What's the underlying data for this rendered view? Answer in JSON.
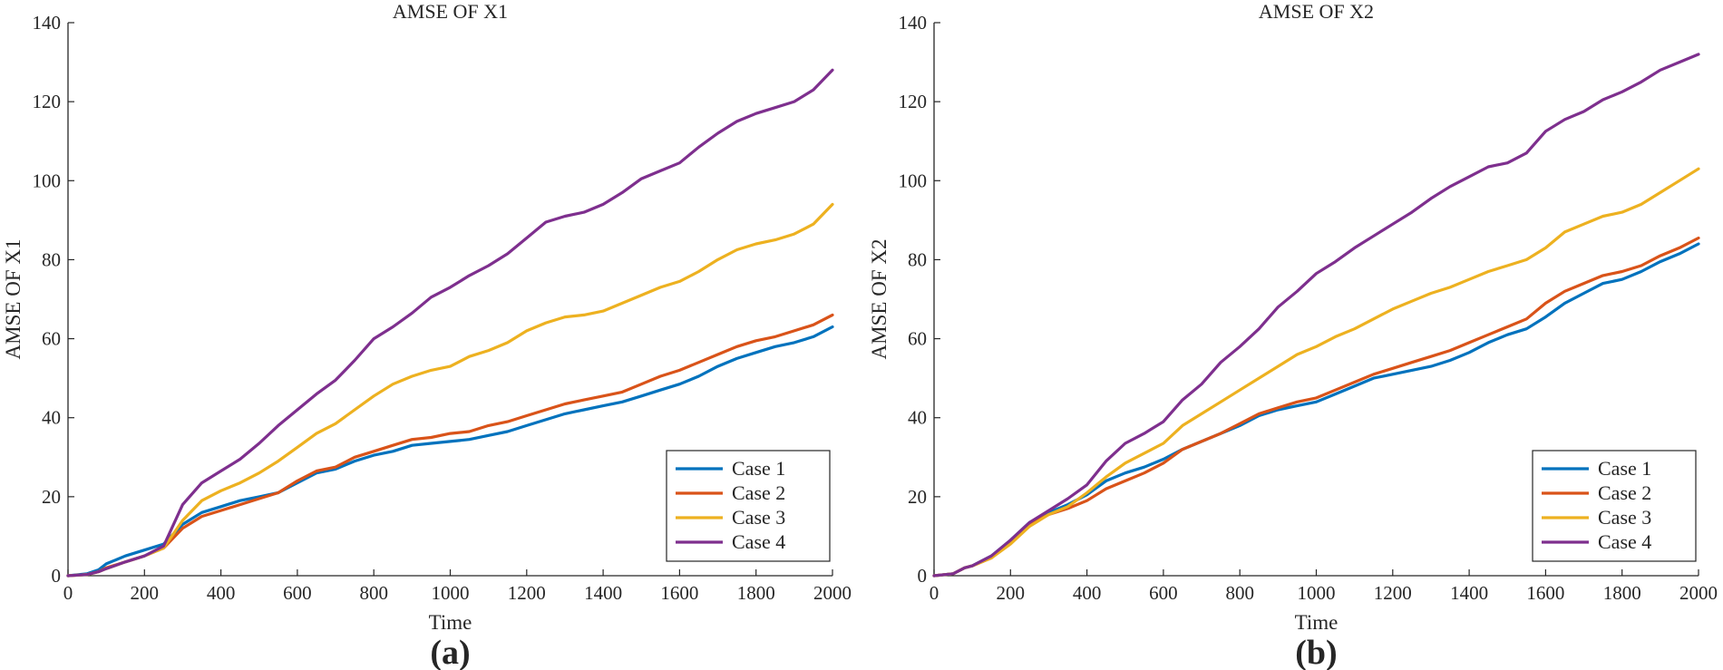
{
  "colors": {
    "case1": "#0072BD",
    "case2": "#D95319",
    "case3": "#EDB120",
    "case4": "#7E2F8E",
    "axis": "#262626"
  },
  "chart_data": [
    {
      "type": "line",
      "panel_label": "(a)",
      "title": "AMSE OF X1",
      "xlabel": "Time",
      "ylabel": "AMSE OF X1",
      "xlim": [
        0,
        2000
      ],
      "ylim": [
        0,
        140
      ],
      "xticks": [
        0,
        200,
        400,
        600,
        800,
        1000,
        1200,
        1400,
        1600,
        1800,
        2000
      ],
      "yticks": [
        0,
        20,
        40,
        60,
        80,
        100,
        120,
        140
      ],
      "grid": false,
      "legend_position": "bottom-right",
      "x": [
        0,
        50,
        80,
        100,
        150,
        200,
        250,
        300,
        350,
        400,
        450,
        500,
        550,
        600,
        650,
        700,
        750,
        800,
        850,
        900,
        950,
        1000,
        1050,
        1100,
        1150,
        1200,
        1250,
        1300,
        1350,
        1400,
        1450,
        1500,
        1550,
        1600,
        1650,
        1700,
        1750,
        1800,
        1850,
        1900,
        1950,
        2000
      ],
      "series": [
        {
          "name": "Case 1",
          "color_key": "case1",
          "values": [
            0,
            0.5,
            1.5,
            3,
            5,
            6.5,
            8,
            13,
            16,
            17.5,
            19,
            20,
            21,
            23.5,
            26,
            27,
            29,
            30.5,
            31.5,
            33,
            33.5,
            34,
            34.5,
            35.5,
            36.5,
            38,
            39.5,
            41,
            42,
            43,
            44,
            45.5,
            47,
            48.5,
            50.5,
            53,
            55,
            56.5,
            58,
            59,
            60.5,
            63
          ]
        },
        {
          "name": "Case 2",
          "color_key": "case2",
          "values": [
            0,
            0.3,
            1,
            2,
            3.5,
            5,
            7,
            12,
            15,
            16.5,
            18,
            19.5,
            21,
            24,
            26.5,
            27.5,
            30,
            31.5,
            33,
            34.5,
            35,
            36,
            36.5,
            38,
            39,
            40.5,
            42,
            43.5,
            44.5,
            45.5,
            46.5,
            48.5,
            50.5,
            52,
            54,
            56,
            58,
            59.5,
            60.5,
            62,
            63.5,
            66
          ]
        },
        {
          "name": "Case 3",
          "color_key": "case3",
          "values": [
            0,
            0.3,
            1,
            1.8,
            3.5,
            5,
            7,
            14,
            19,
            21.5,
            23.5,
            26,
            29,
            32.5,
            36,
            38.5,
            42,
            45.5,
            48.5,
            50.5,
            52,
            53,
            55.5,
            57,
            59,
            62,
            64,
            65.5,
            66,
            67,
            69,
            71,
            73,
            74.5,
            77,
            80,
            82.5,
            84,
            85,
            86.5,
            89,
            94
          ]
        },
        {
          "name": "Case 4",
          "color_key": "case4",
          "values": [
            0,
            0.3,
            1,
            1.8,
            3.5,
            5,
            7.5,
            18,
            23.5,
            26.5,
            29.5,
            33.5,
            38,
            42,
            46,
            49.5,
            54.5,
            60,
            63,
            66.5,
            70.5,
            73,
            76,
            78.5,
            81.5,
            85.5,
            89.5,
            91,
            92,
            94,
            97,
            100.5,
            102.5,
            104.5,
            108.5,
            112,
            115,
            117,
            118.5,
            120,
            123,
            128
          ]
        }
      ]
    },
    {
      "type": "line",
      "panel_label": "(b)",
      "title": "AMSE OF X2",
      "xlabel": "Time",
      "ylabel": "AMSE OF X2",
      "xlim": [
        0,
        2000
      ],
      "ylim": [
        0,
        140
      ],
      "xticks": [
        0,
        200,
        400,
        600,
        800,
        1000,
        1200,
        1400,
        1600,
        1800,
        2000
      ],
      "yticks": [
        0,
        20,
        40,
        60,
        80,
        100,
        120,
        140
      ],
      "grid": false,
      "legend_position": "bottom-right",
      "x": [
        0,
        50,
        80,
        100,
        150,
        200,
        250,
        300,
        350,
        400,
        450,
        500,
        550,
        600,
        650,
        700,
        750,
        800,
        850,
        900,
        950,
        1000,
        1050,
        1100,
        1150,
        1200,
        1250,
        1300,
        1350,
        1400,
        1450,
        1500,
        1550,
        1600,
        1650,
        1700,
        1750,
        1800,
        1850,
        1900,
        1950,
        2000
      ],
      "series": [
        {
          "name": "Case 1",
          "color_key": "case1",
          "values": [
            0,
            0.5,
            2,
            2.5,
            5,
            9,
            13.5,
            16,
            18,
            20.5,
            24,
            26,
            27.5,
            29.5,
            32,
            34,
            36,
            38,
            40.5,
            42,
            43,
            44,
            46,
            48,
            50,
            51,
            52,
            53,
            54.5,
            56.5,
            59,
            61,
            62.5,
            65.5,
            69,
            71.5,
            74,
            75,
            77,
            79.5,
            81.5,
            84
          ]
        },
        {
          "name": "Case 2",
          "color_key": "case2",
          "values": [
            0,
            0.5,
            2,
            2.5,
            4.5,
            8.5,
            13,
            15.5,
            17,
            19,
            22,
            24,
            26,
            28.5,
            32,
            34,
            36,
            38.5,
            41,
            42.5,
            44,
            45,
            47,
            49,
            51,
            52.5,
            54,
            55.5,
            57,
            59,
            61,
            63,
            65,
            69,
            72,
            74,
            76,
            77,
            78.5,
            81,
            83,
            85.5
          ]
        },
        {
          "name": "Case 3",
          "color_key": "case3",
          "values": [
            0,
            0.5,
            2,
            2.5,
            4.5,
            8,
            12.5,
            15.5,
            17.5,
            21,
            25,
            28.5,
            31,
            33.5,
            38,
            41,
            44,
            47,
            50,
            53,
            56,
            58,
            60.5,
            62.5,
            65,
            67.5,
            69.5,
            71.5,
            73,
            75,
            77,
            78.5,
            80,
            83,
            87,
            89,
            91,
            92,
            94,
            97,
            100,
            103
          ]
        },
        {
          "name": "Case 4",
          "color_key": "case4",
          "values": [
            0,
            0.5,
            2,
            2.5,
            5,
            9,
            13.5,
            16.5,
            19.5,
            23,
            29,
            33.5,
            36,
            39,
            44.5,
            48.5,
            54,
            58,
            62.5,
            68,
            72,
            76.5,
            79.5,
            83,
            86,
            89,
            92,
            95.5,
            98.5,
            101,
            103.5,
            104.5,
            107,
            112.5,
            115.5,
            117.5,
            120.5,
            122.5,
            125,
            128,
            130,
            132
          ]
        }
      ]
    }
  ]
}
